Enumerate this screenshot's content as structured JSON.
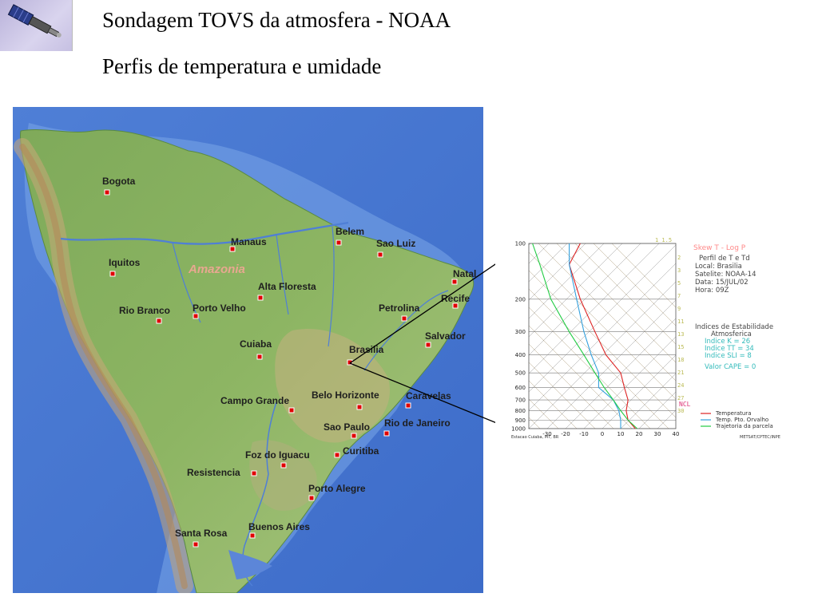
{
  "header": {
    "title_line1": "Sondagem TOVS da atmosfera - NOAA",
    "title_line2": "Perfis de temperatura e umidade"
  },
  "map": {
    "region_label": "Amazonia",
    "cities": [
      {
        "name": "Bogota"
      },
      {
        "name": "Manaus"
      },
      {
        "name": "Belem"
      },
      {
        "name": "Sao Luiz"
      },
      {
        "name": "Iquitos"
      },
      {
        "name": "Natal"
      },
      {
        "name": "Alta Floresta"
      },
      {
        "name": "Recife"
      },
      {
        "name": "Rio Branco"
      },
      {
        "name": "Porto Velho"
      },
      {
        "name": "Petrolina"
      },
      {
        "name": "Salvador"
      },
      {
        "name": "Cuiaba"
      },
      {
        "name": "Brasilia"
      },
      {
        "name": "Campo Grande"
      },
      {
        "name": "Belo Horizonte"
      },
      {
        "name": "Caravelas"
      },
      {
        "name": "Sao Paulo"
      },
      {
        "name": "Rio de Janeiro"
      },
      {
        "name": "Foz do Iguacu"
      },
      {
        "name": "Curitiba"
      },
      {
        "name": "Resistencia"
      },
      {
        "name": "Porto Alegre"
      },
      {
        "name": "Santa Rosa"
      },
      {
        "name": "Buenos Aires"
      }
    ],
    "marker_color": "#e00000"
  },
  "skewt": {
    "title": "Skew T - Log P",
    "subtitle": "Perfil de T e Td",
    "local": "Local: Brasilia",
    "satelite": "Satelite: NOAA-14",
    "data": "Data: 15/JUL/02",
    "hora": "Hora: 09Z",
    "indices_title": "Indices de Estabilidade",
    "indices_subtitle": "Atmosferica",
    "indice_k": "Indice K = 26",
    "indice_tt": "Indice TT = 34",
    "indice_sli": "Indice SLI = 8",
    "valor_cape": "Valor CAPE = 0",
    "ncl_label": "NCL",
    "pressure_ticks": [
      "100",
      "200",
      "300",
      "400",
      "500",
      "600",
      "700",
      "800",
      "900",
      "1000"
    ],
    "temp_ticks": [
      "-30",
      "-20",
      "-10",
      "0",
      "10",
      "20",
      "30",
      "40"
    ],
    "legend": [
      {
        "label": "Temperatura",
        "color": "#dd2222"
      },
      {
        "label": "Temp. Pto. Orvalho",
        "color": "#33a0dd"
      },
      {
        "label": "Trajetoria da parcela",
        "color": "#22cc44"
      }
    ],
    "source_left": "Estacao Cuiaba, MT, BR",
    "source_right": "METSAT/CPTEC/INPE",
    "mixing_top": "1 1.5",
    "mixing_ratios": [
      "2",
      "3",
      "5",
      "7",
      "9",
      "11",
      "13",
      "15",
      "18",
      "21",
      "24",
      "27",
      "30"
    ]
  }
}
